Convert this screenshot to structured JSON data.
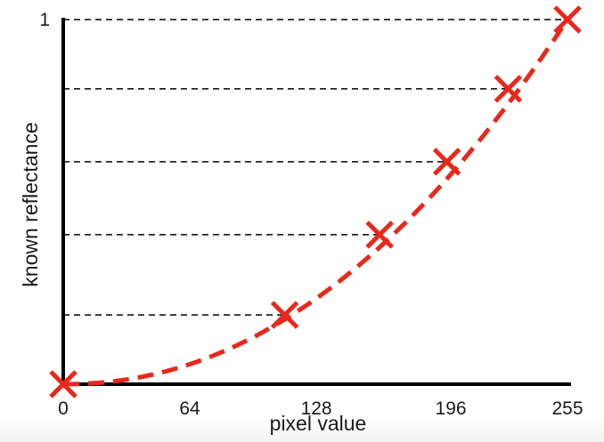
{
  "chart_data": {
    "type": "scatter",
    "title": "",
    "xlabel": "pixel value",
    "ylabel": "known reflectance",
    "xlim": [
      0,
      255
    ],
    "ylim": [
      0,
      1
    ],
    "x_ticks": [
      "0",
      "64",
      "128",
      "196",
      "255"
    ],
    "y_ticks": [
      "1"
    ],
    "grid": false,
    "guide_lines": "dashed horizontal lines from y-axis to each point",
    "points": [
      {
        "x": 0,
        "y": 0
      },
      {
        "x": 112,
        "y": 0.19
      },
      {
        "x": 160,
        "y": 0.41
      },
      {
        "x": 194,
        "y": 0.61
      },
      {
        "x": 225,
        "y": 0.81
      },
      {
        "x": 255,
        "y": 1.0
      }
    ],
    "marker": "x",
    "marker_color": "#e8281c",
    "fit_curve": {
      "style": "dashed",
      "color": "#e8281c",
      "form": "power",
      "exponent": 2.1
    },
    "axis_color": "#000000",
    "guide_color": "#000000"
  }
}
